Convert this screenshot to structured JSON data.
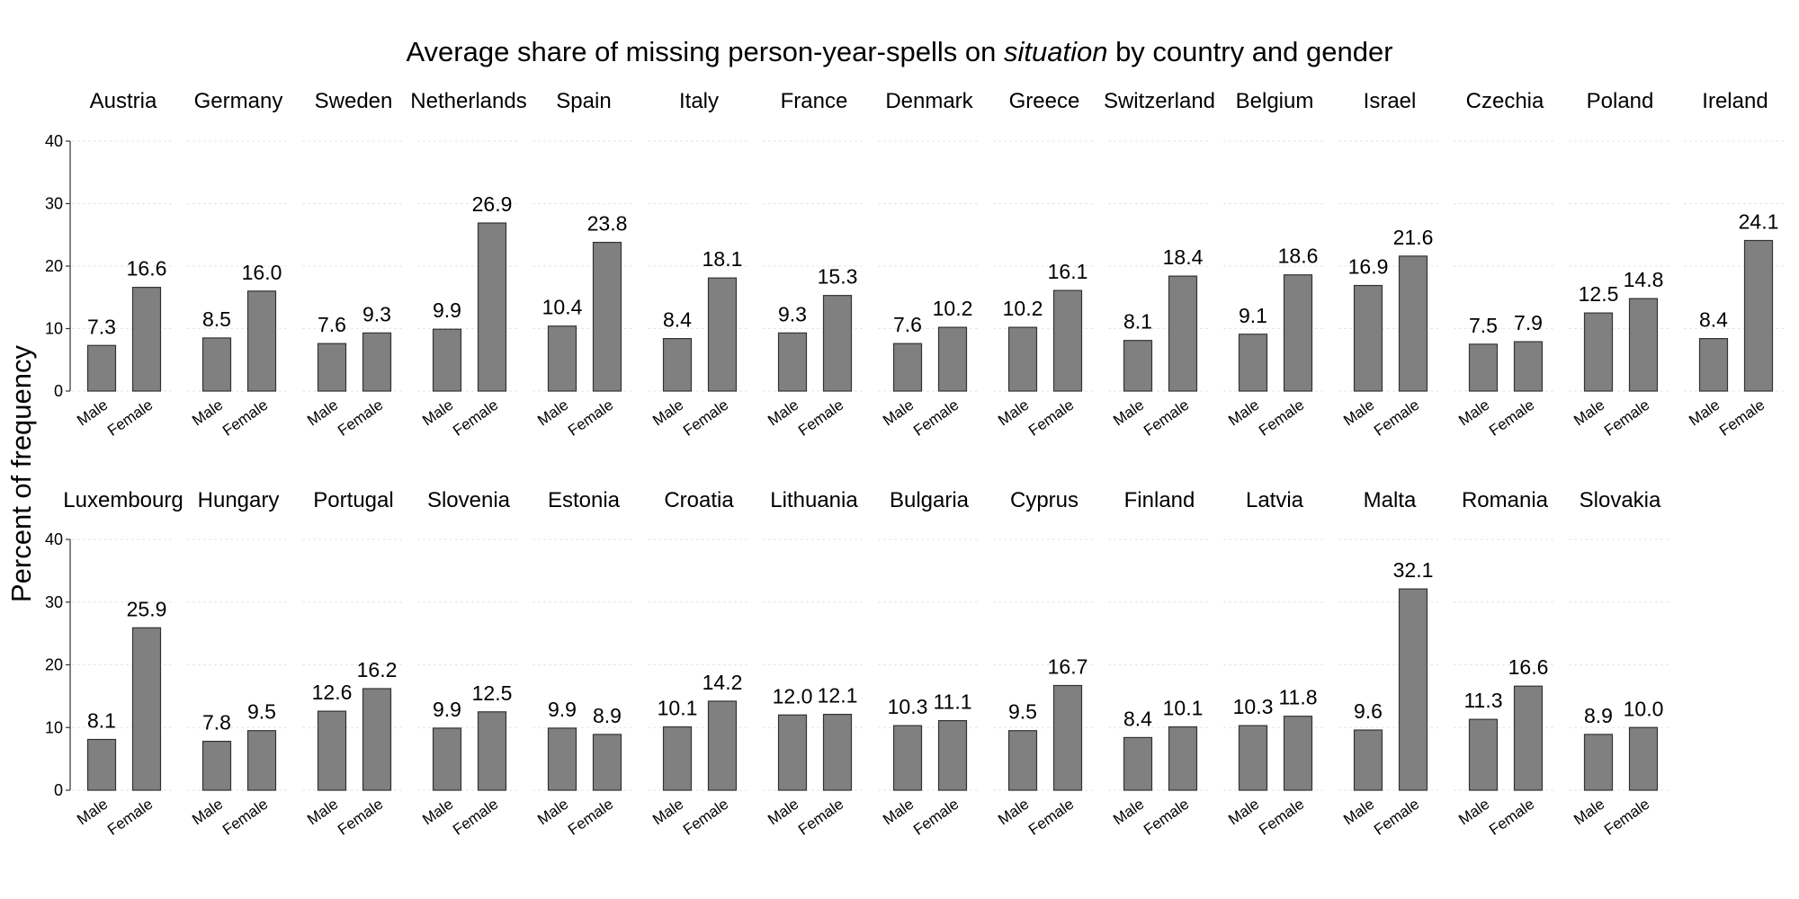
{
  "chart_data": {
    "type": "bar",
    "title_pre": "Average share of missing person-year-spells on ",
    "title_em": "situation",
    "title_post": " by country and gender",
    "ylabel": "Percent of frequency",
    "ylim": [
      0,
      40
    ],
    "yticks": [
      0,
      10,
      20,
      30,
      40
    ],
    "categories": [
      "Male",
      "Female"
    ],
    "grid": "horizontal dotted",
    "facets": [
      {
        "country": "Austria",
        "values": [
          7.3,
          16.6
        ],
        "labels": [
          "7.3",
          "16.6"
        ]
      },
      {
        "country": "Germany",
        "values": [
          8.5,
          16.0
        ],
        "labels": [
          "8.5",
          "16.0"
        ]
      },
      {
        "country": "Sweden",
        "values": [
          7.6,
          9.3
        ],
        "labels": [
          "7.6",
          "9.3"
        ]
      },
      {
        "country": "Netherlands",
        "values": [
          9.9,
          26.9
        ],
        "labels": [
          "9.9",
          "26.9"
        ]
      },
      {
        "country": "Spain",
        "values": [
          10.4,
          23.8
        ],
        "labels": [
          "10.4",
          "23.8"
        ]
      },
      {
        "country": "Italy",
        "values": [
          8.4,
          18.1
        ],
        "labels": [
          "8.4",
          "18.1"
        ]
      },
      {
        "country": "France",
        "values": [
          9.3,
          15.3
        ],
        "labels": [
          "9.3",
          "15.3"
        ]
      },
      {
        "country": "Denmark",
        "values": [
          7.6,
          10.2
        ],
        "labels": [
          "7.6",
          "10.2"
        ]
      },
      {
        "country": "Greece",
        "values": [
          10.2,
          16.1
        ],
        "labels": [
          "10.2",
          "16.1"
        ]
      },
      {
        "country": "Switzerland",
        "values": [
          8.1,
          18.4
        ],
        "labels": [
          "8.1",
          "18.4"
        ]
      },
      {
        "country": "Belgium",
        "values": [
          9.1,
          18.6
        ],
        "labels": [
          "9.1",
          "18.6"
        ]
      },
      {
        "country": "Israel",
        "values": [
          16.9,
          21.6
        ],
        "labels": [
          "16.9",
          "21.6"
        ]
      },
      {
        "country": "Czechia",
        "values": [
          7.5,
          7.9
        ],
        "labels": [
          "7.5",
          "7.9"
        ]
      },
      {
        "country": "Poland",
        "values": [
          12.5,
          14.8
        ],
        "labels": [
          "12.5",
          "14.8"
        ]
      },
      {
        "country": "Ireland",
        "values": [
          8.4,
          24.1
        ],
        "labels": [
          "8.4",
          "24.1"
        ]
      },
      {
        "country": "Luxembourg",
        "values": [
          8.1,
          25.9
        ],
        "labels": [
          "8.1",
          "25.9"
        ]
      },
      {
        "country": "Hungary",
        "values": [
          7.8,
          9.5
        ],
        "labels": [
          "7.8",
          "9.5"
        ]
      },
      {
        "country": "Portugal",
        "values": [
          12.6,
          16.2
        ],
        "labels": [
          "12.6",
          "16.2"
        ]
      },
      {
        "country": "Slovenia",
        "values": [
          9.9,
          12.5
        ],
        "labels": [
          "9.9",
          "12.5"
        ]
      },
      {
        "country": "Estonia",
        "values": [
          9.9,
          8.9
        ],
        "labels": [
          "9.9",
          "8.9"
        ]
      },
      {
        "country": "Croatia",
        "values": [
          10.1,
          14.2
        ],
        "labels": [
          "10.1",
          "14.2"
        ]
      },
      {
        "country": "Lithuania",
        "values": [
          12.0,
          12.1
        ],
        "labels": [
          "12.0",
          "12.1"
        ]
      },
      {
        "country": "Bulgaria",
        "values": [
          10.3,
          11.1
        ],
        "labels": [
          "10.3",
          "11.1"
        ]
      },
      {
        "country": "Cyprus",
        "values": [
          9.5,
          16.7
        ],
        "labels": [
          "9.5",
          "16.7"
        ]
      },
      {
        "country": "Finland",
        "values": [
          8.4,
          10.1
        ],
        "labels": [
          "8.4",
          "10.1"
        ]
      },
      {
        "country": "Latvia",
        "values": [
          10.3,
          11.8
        ],
        "labels": [
          "10.3",
          "11.8"
        ]
      },
      {
        "country": "Malta",
        "values": [
          9.6,
          32.1
        ],
        "labels": [
          "9.6",
          "32.1"
        ]
      },
      {
        "country": "Romania",
        "values": [
          11.3,
          16.6
        ],
        "labels": [
          "11.3",
          "16.6"
        ]
      },
      {
        "country": "Slovakia",
        "values": [
          8.9,
          10.0
        ],
        "labels": [
          "8.9",
          "10.0"
        ]
      }
    ],
    "bar_color": "#808080",
    "bar_stroke": "#333333"
  }
}
